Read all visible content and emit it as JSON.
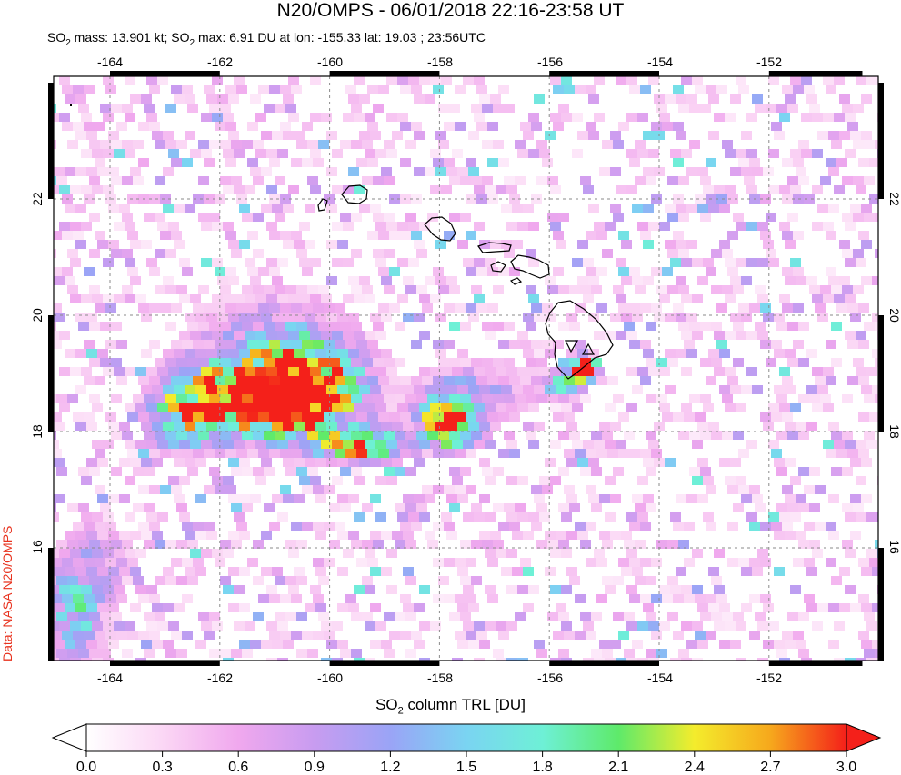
{
  "title": "N20/OMPS - 06/01/2018 22:16-23:58 UT",
  "subtitle": {
    "so2_mass_label": "SO",
    "so2_mass_text": " mass: 13.901 kt; SO",
    "so2_max_text": " max: 6.91 DU at lon: -155.33 lat: 19.03 ; 23:56UTC",
    "sub2": "2"
  },
  "map": {
    "lon_range": [
      -165,
      -150
    ],
    "lat_range": [
      14,
      24
    ],
    "lon_ticks": [
      "-164",
      "-162",
      "-160",
      "-158",
      "-156",
      "-154",
      "-152"
    ],
    "lat_ticks": [
      "16",
      "18",
      "20",
      "22"
    ],
    "volcano_markers": [
      "triangle-icon",
      "triangle-icon"
    ]
  },
  "colorbar": {
    "title_pre": "SO",
    "title_sub": "2",
    "title_post": " column TRL [DU]",
    "min": 0.0,
    "max": 3.0,
    "tick_labels": [
      "0.0",
      "0.3",
      "0.6",
      "0.9",
      "1.2",
      "1.5",
      "1.8",
      "2.1",
      "2.4",
      "2.7",
      "3.0"
    ],
    "colors": [
      "#ffffff",
      "#fbd7f5",
      "#f0a8ee",
      "#c89cf0",
      "#9aa4f6",
      "#7ad4f2",
      "#6ef0d6",
      "#5eea6a",
      "#a8ec3c",
      "#f4ec2c",
      "#f6a81c",
      "#f04a14",
      "#f4201a"
    ]
  },
  "credit": "Data: NASA N20/OMPS",
  "colors": {
    "plume_high": "#f4201a",
    "coast": "#000000",
    "grid": "#808080",
    "credit": "#e8321e"
  }
}
